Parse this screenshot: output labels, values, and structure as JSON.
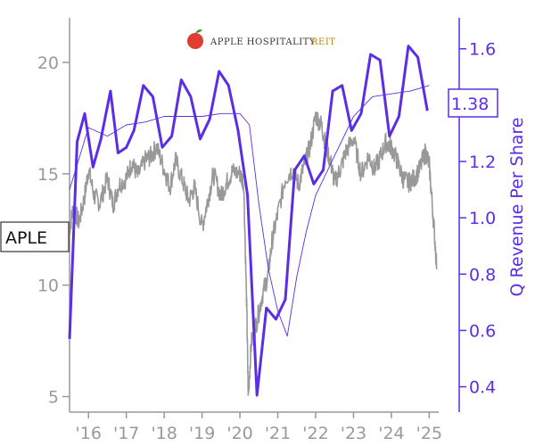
{
  "logo": {
    "text": "APPLE HOSPITALITY",
    "suffix": "REIT"
  },
  "ticker_label": "APLE",
  "current_value_label": "1.38",
  "colors": {
    "price": "#999999",
    "revenue": "#5b2ee6",
    "trend": "#5b2ee6",
    "logo_red": "#e03c31",
    "logo_gold": "#b8860b"
  },
  "chart_data": {
    "type": "line",
    "xlabel": "",
    "left_axis": {
      "label": "",
      "range": [
        4.3,
        22
      ],
      "ticks": [
        5,
        10,
        15,
        20
      ]
    },
    "right_axis": {
      "label": "Q Revenue Per Share",
      "range": [
        0.31,
        1.71
      ],
      "ticks": [
        0.4,
        0.6,
        0.8,
        1.0,
        1.2,
        1.4,
        1.6
      ]
    },
    "x_range": [
      2015.5,
      2025.25
    ],
    "x_ticks": [
      {
        "x": 2016,
        "label": "'16"
      },
      {
        "x": 2017,
        "label": "'17"
      },
      {
        "x": 2018,
        "label": "'18"
      },
      {
        "x": 2019,
        "label": "'19"
      },
      {
        "x": 2020,
        "label": "'20"
      },
      {
        "x": 2021,
        "label": "'21"
      },
      {
        "x": 2022,
        "label": "'22"
      },
      {
        "x": 2023,
        "label": "'23"
      },
      {
        "x": 2024,
        "label": "'24"
      },
      {
        "x": 2025,
        "label": "'25"
      }
    ],
    "series": [
      {
        "name": "APLE",
        "axis": "left",
        "style": "price",
        "x": [
          2015.5,
          2015.6,
          2015.75,
          2015.9,
          2016.0,
          2016.15,
          2016.3,
          2016.5,
          2016.65,
          2016.8,
          2017.0,
          2017.15,
          2017.3,
          2017.5,
          2017.65,
          2017.8,
          2018.0,
          2018.15,
          2018.3,
          2018.5,
          2018.65,
          2018.8,
          2019.0,
          2019.15,
          2019.3,
          2019.5,
          2019.65,
          2019.8,
          2020.0,
          2020.1,
          2020.18,
          2020.22,
          2020.3,
          2020.45,
          2020.6,
          2020.75,
          2020.85,
          2021.0,
          2021.2,
          2021.4,
          2021.55,
          2021.7,
          2021.85,
          2022.0,
          2022.15,
          2022.25,
          2022.4,
          2022.5,
          2022.65,
          2022.8,
          2023.0,
          2023.2,
          2023.4,
          2023.55,
          2023.7,
          2023.85,
          2024.0,
          2024.15,
          2024.3,
          2024.45,
          2024.6,
          2024.75,
          2024.9,
          2025.0,
          2025.1,
          2025.2
        ],
        "y": [
          12.5,
          13.5,
          12.8,
          14.0,
          15.2,
          14.0,
          13.7,
          14.8,
          13.6,
          14.5,
          14.8,
          15.5,
          14.9,
          15.6,
          15.8,
          16.2,
          15.2,
          14.4,
          15.6,
          14.6,
          13.8,
          14.4,
          12.6,
          13.8,
          15.0,
          14.0,
          14.6,
          15.1,
          15.0,
          14.6,
          9.0,
          5.0,
          7.4,
          8.4,
          9.6,
          10.5,
          12.0,
          13.2,
          14.8,
          15.2,
          14.5,
          15.4,
          16.2,
          17.6,
          17.2,
          16.4,
          15.5,
          14.6,
          15.2,
          16.0,
          16.6,
          15.0,
          15.8,
          15.2,
          15.7,
          16.4,
          16.2,
          15.6,
          14.8,
          14.6,
          14.8,
          15.2,
          16.0,
          15.4,
          13.2,
          10.8
        ]
      },
      {
        "name": "Q Revenue Per Share",
        "axis": "right",
        "style": "revenue",
        "x": [
          2015.5,
          2015.7,
          2015.9,
          2016.12,
          2016.33,
          2016.58,
          2016.78,
          2017.0,
          2017.2,
          2017.45,
          2017.7,
          2017.95,
          2018.2,
          2018.45,
          2018.7,
          2018.95,
          2019.2,
          2019.45,
          2019.7,
          2019.95,
          2020.2,
          2020.45,
          2020.7,
          2020.95,
          2021.2,
          2021.45,
          2021.7,
          2021.95,
          2022.2,
          2022.45,
          2022.7,
          2022.95,
          2023.2,
          2023.45,
          2023.7,
          2023.95,
          2024.2,
          2024.45,
          2024.7,
          2024.95
        ],
        "y": [
          0.57,
          1.27,
          1.37,
          1.18,
          1.28,
          1.45,
          1.23,
          1.25,
          1.31,
          1.47,
          1.43,
          1.25,
          1.29,
          1.49,
          1.43,
          1.28,
          1.35,
          1.52,
          1.47,
          1.31,
          1.08,
          0.37,
          0.68,
          0.64,
          0.71,
          1.17,
          1.22,
          1.12,
          1.17,
          1.45,
          1.47,
          1.31,
          1.37,
          1.58,
          1.56,
          1.29,
          1.36,
          1.61,
          1.57,
          1.38
        ]
      },
      {
        "name": "",
        "axis": "right",
        "style": "trend",
        "x": [
          2015.5,
          2016.0,
          2016.5,
          2017.0,
          2017.5,
          2018.0,
          2018.5,
          2019.0,
          2019.5,
          2020.0,
          2020.25,
          2020.5,
          2020.75,
          2021.0,
          2021.25,
          2021.5,
          2021.75,
          2022.0,
          2022.5,
          2023.0,
          2023.5,
          2024.0,
          2024.5,
          2025.0
        ],
        "y": [
          1.1,
          1.32,
          1.29,
          1.33,
          1.34,
          1.36,
          1.36,
          1.36,
          1.37,
          1.37,
          1.33,
          1.05,
          0.82,
          0.67,
          0.58,
          0.79,
          0.95,
          1.08,
          1.22,
          1.36,
          1.43,
          1.44,
          1.45,
          1.47
        ]
      }
    ]
  }
}
